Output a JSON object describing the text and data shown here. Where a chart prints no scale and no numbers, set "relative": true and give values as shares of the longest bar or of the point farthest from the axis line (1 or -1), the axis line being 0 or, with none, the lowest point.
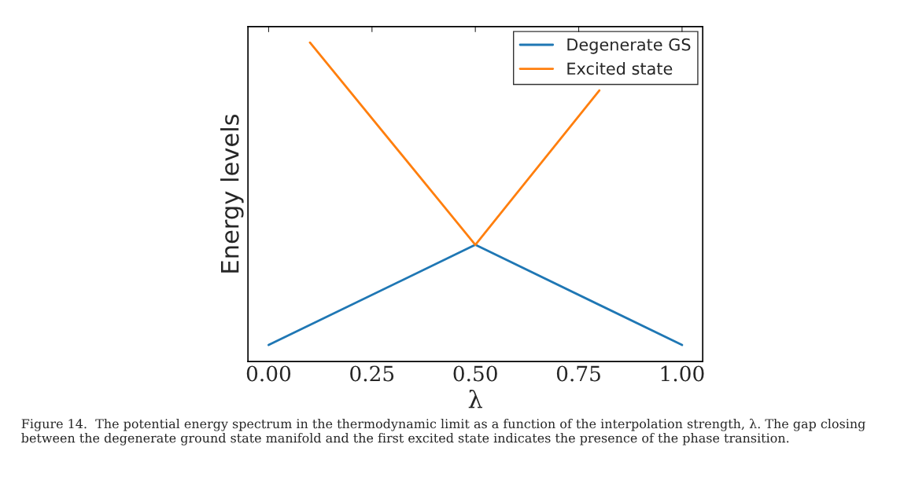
{
  "chart_data": {
    "type": "line",
    "relative": true,
    "xlabel": "λ",
    "ylabel": "Energy levels",
    "xlim": [
      -0.05,
      1.05
    ],
    "xticks": [
      {
        "value": 0,
        "label": "0.00"
      },
      {
        "value": 0.25,
        "label": "0.25"
      },
      {
        "value": 0.5,
        "label": "0.50"
      },
      {
        "value": 0.75,
        "label": "0.75"
      },
      {
        "value": 1,
        "label": "1.00"
      }
    ],
    "series": [
      {
        "name": "Degenerate GS",
        "color": "#1f77b4",
        "x": [
          0,
          0.5,
          1
        ],
        "values": [
          0.052,
          0.366,
          0.052
        ]
      },
      {
        "name": "Excited state",
        "color": "#ff7f0e",
        "x": [
          0.1,
          0.5,
          0.8
        ],
        "values": [
          1,
          0.366,
          0.85
        ]
      }
    ],
    "legend": "top right",
    "grid": false,
    "annotations": [
      "Figure 14.  The potential energy spectrum in the thermodynamic limit as a function of the interpolation strength, λ. The gap closing between the degenerate ground state manifold and the first excited state indicates the presence of the phase transition."
    ]
  }
}
